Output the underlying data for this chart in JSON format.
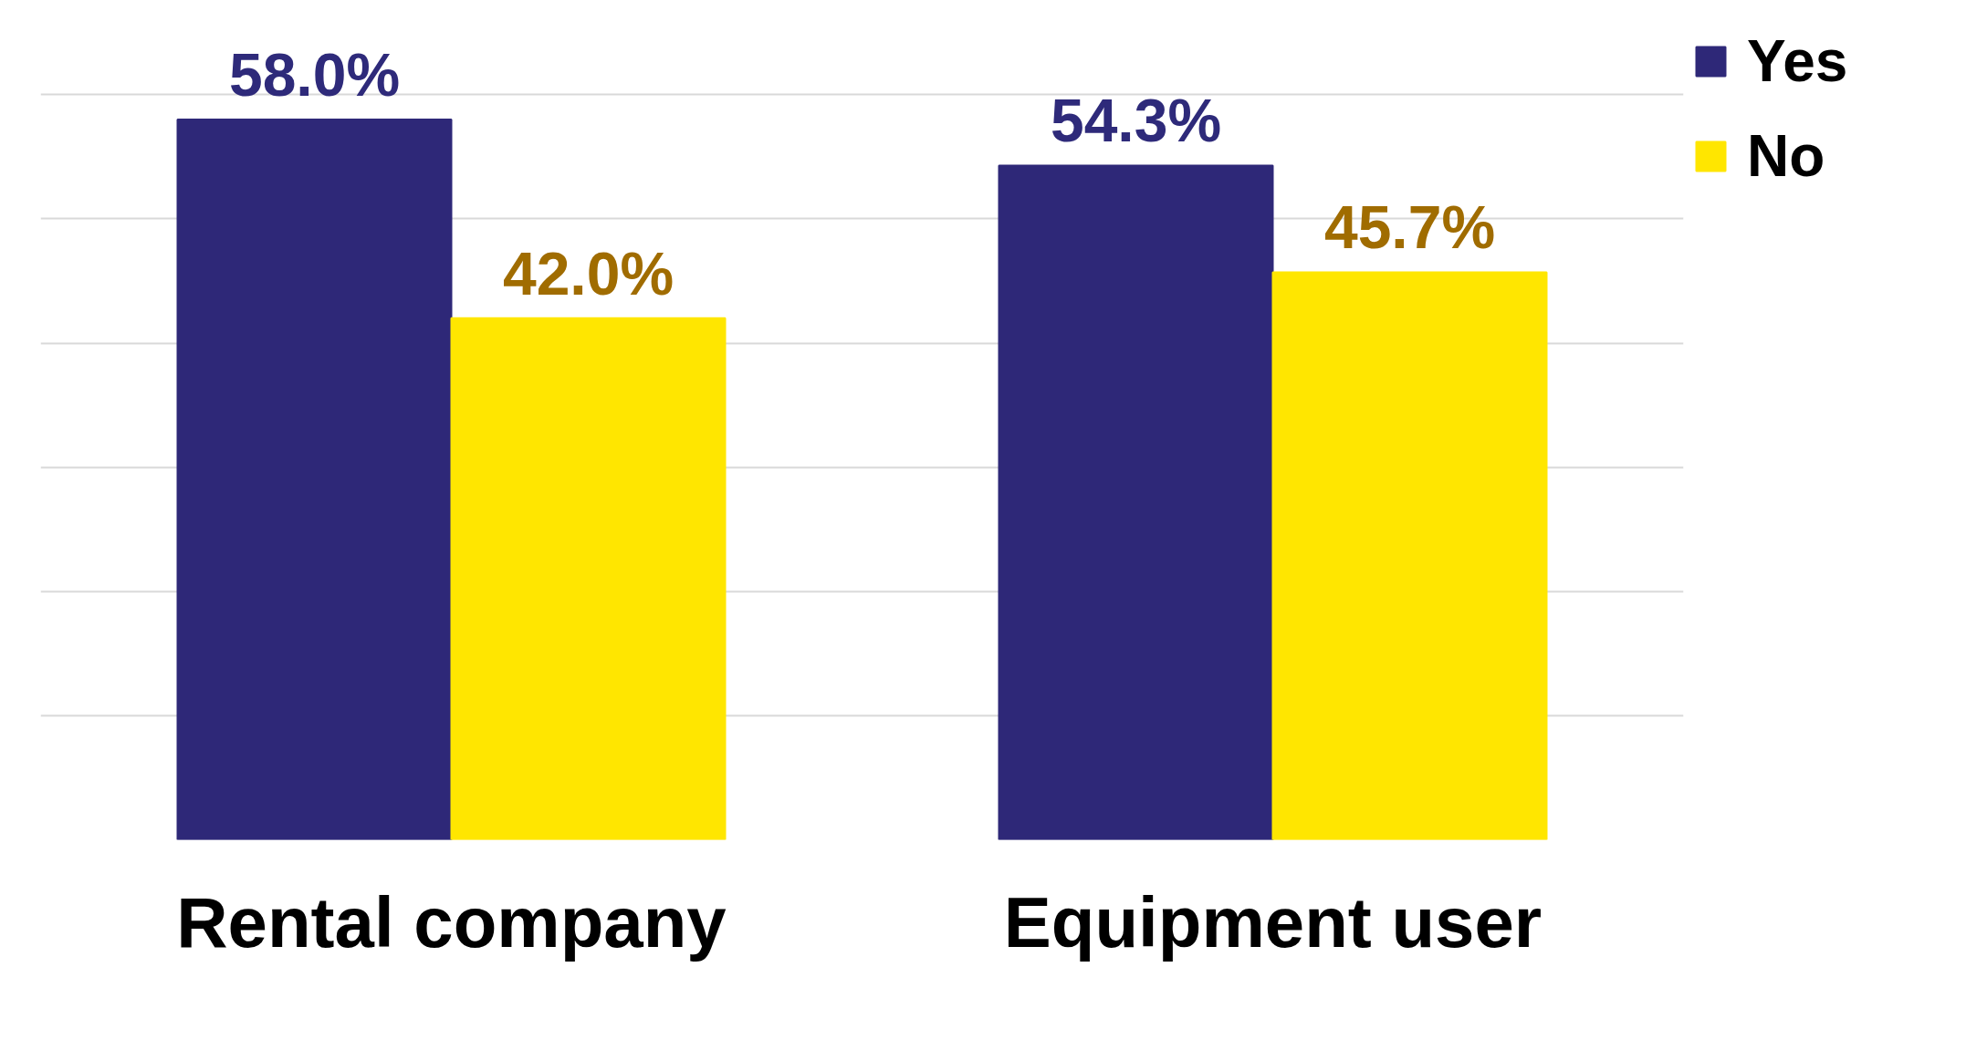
{
  "chart_data": {
    "type": "bar",
    "categories": [
      "Rental company",
      "Equipment user"
    ],
    "series": [
      {
        "name": "Yes",
        "color": "#2e2878",
        "values": [
          58.0,
          54.3
        ],
        "value_labels": [
          "58.0%",
          "54.3%"
        ]
      },
      {
        "name": "No",
        "color": "#ffe600",
        "values": [
          42.0,
          45.7
        ],
        "value_labels": [
          "42.0%",
          "45.7%"
        ]
      }
    ],
    "tick_labels": "x",
    "grid": "y",
    "legend": "top right"
  }
}
